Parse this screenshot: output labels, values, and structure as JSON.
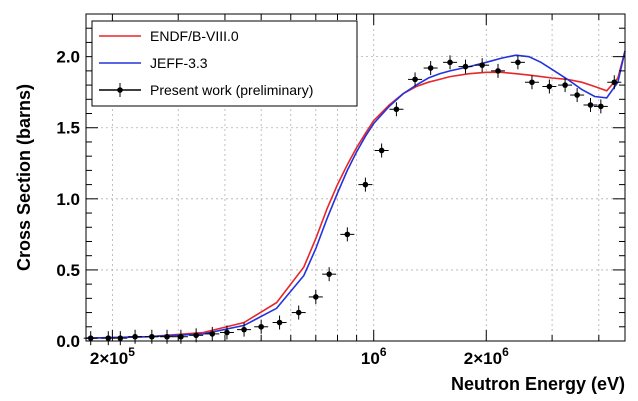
{
  "chart_data": {
    "type": "line",
    "xlabel": "Neutron Energy (eV)",
    "ylabel": "Cross Section (barns)",
    "xscale": "log",
    "xlim": [
      170000,
      4700000
    ],
    "ylim": [
      0,
      2.3
    ],
    "grid": true,
    "legend_position": "top-left",
    "x_tick_labels": [
      "2×10",
      "10",
      "2×10"
    ],
    "x_tick_base": "10",
    "x_tick_exponents": [
      "5",
      "6",
      "6"
    ],
    "x_tick_values": [
      200000,
      1000000,
      2000000
    ],
    "y_tick_labels": [
      "0.0",
      "0.5",
      "1.0",
      "1.5",
      "2.0"
    ],
    "y_tick_values": [
      0,
      0.5,
      1.0,
      1.5,
      2.0
    ],
    "series": [
      {
        "name": "ENDF/B-VIII.0",
        "color": "#e8262a",
        "style": "line",
        "x": [
          170000,
          250000,
          350000,
          450000,
          550000,
          650000,
          700000,
          750000,
          800000,
          850000,
          900000,
          950000,
          1000000,
          1100000,
          1200000,
          1300000,
          1400000,
          1500000,
          1600000,
          1800000,
          2000000,
          2200000,
          2400000,
          2600000,
          2800000,
          3000000,
          3300000,
          3600000,
          3900000,
          4200000,
          4500000,
          4700000
        ],
        "y": [
          0.02,
          0.03,
          0.06,
          0.13,
          0.27,
          0.52,
          0.72,
          0.93,
          1.1,
          1.24,
          1.36,
          1.46,
          1.55,
          1.66,
          1.74,
          1.79,
          1.82,
          1.84,
          1.86,
          1.88,
          1.89,
          1.89,
          1.88,
          1.87,
          1.86,
          1.85,
          1.84,
          1.82,
          1.79,
          1.76,
          1.85,
          2.04
        ]
      },
      {
        "name": "JEFF-3.3",
        "color": "#2233dd",
        "style": "line",
        "x": [
          170000,
          250000,
          350000,
          450000,
          550000,
          650000,
          700000,
          750000,
          800000,
          850000,
          900000,
          950000,
          1000000,
          1100000,
          1200000,
          1300000,
          1400000,
          1500000,
          1600000,
          1800000,
          2000000,
          2200000,
          2400000,
          2600000,
          2800000,
          3000000,
          3300000,
          3600000,
          3900000,
          4200000,
          4500000,
          4700000
        ],
        "y": [
          0.02,
          0.03,
          0.05,
          0.11,
          0.23,
          0.46,
          0.65,
          0.86,
          1.04,
          1.2,
          1.33,
          1.44,
          1.53,
          1.65,
          1.74,
          1.8,
          1.85,
          1.88,
          1.9,
          1.93,
          1.96,
          1.99,
          2.01,
          2.0,
          1.96,
          1.91,
          1.84,
          1.77,
          1.72,
          1.71,
          1.82,
          2.04
        ]
      },
      {
        "name": "Present work (preliminary)",
        "color": "#000000",
        "style": "points-with-error-bars",
        "x": [
          175000,
          195000,
          210000,
          230000,
          255000,
          280000,
          305000,
          335000,
          370000,
          405000,
          450000,
          500000,
          560000,
          630000,
          700000,
          760000,
          850000,
          950000,
          1050000,
          1150000,
          1290000,
          1420000,
          1600000,
          1760000,
          1950000,
          2150000,
          2430000,
          2650000,
          2950000,
          3250000,
          3500000,
          3800000,
          4050000,
          4400000
        ],
        "y": [
          0.02,
          0.02,
          0.02,
          0.03,
          0.03,
          0.03,
          0.03,
          0.04,
          0.05,
          0.06,
          0.08,
          0.1,
          0.13,
          0.2,
          0.31,
          0.47,
          0.75,
          1.1,
          1.34,
          1.63,
          1.84,
          1.92,
          1.96,
          1.93,
          1.94,
          1.9,
          1.96,
          1.82,
          1.79,
          1.8,
          1.73,
          1.66,
          1.65,
          1.82
        ]
      }
    ]
  }
}
